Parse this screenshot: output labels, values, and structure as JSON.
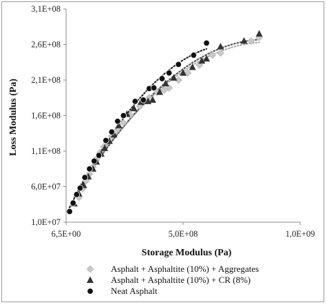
{
  "chart_data": {
    "type": "scatter",
    "xlabel": "Storage Modulus (Pa)",
    "ylabel": "Loss Modulus (Pa)",
    "xlim": [
      6.5,
      1000000000
    ],
    "ylim": [
      10000000,
      310000000
    ],
    "xticks": [
      {
        "value": 6.5,
        "label": "6,5E+00"
      },
      {
        "value": 500000000,
        "label": "5,0E+08"
      },
      {
        "value": 1000000000,
        "label": "1,0E+09"
      }
    ],
    "yticks": [
      {
        "value": 10000000,
        "label": "1,0E+07"
      },
      {
        "value": 60000000,
        "label": "6,0E+07"
      },
      {
        "value": 110000000,
        "label": "1,1E+08"
      },
      {
        "value": 160000000,
        "label": "1,6E+08"
      },
      {
        "value": 210000000,
        "label": "2,1E+08"
      },
      {
        "value": 260000000,
        "label": "2,6E+08"
      },
      {
        "value": 310000000,
        "label": "3,1E+08"
      }
    ],
    "grid": false,
    "legend_position": "bottom",
    "series": [
      {
        "name": "Asphalt + Asphaltite (10%) + Aggregates",
        "marker": "diamond",
        "color": "#c8c8c8",
        "trendline_color": "#aaaaaa",
        "points": [
          [
            55000000,
            45000000
          ],
          [
            70000000,
            57000000
          ],
          [
            85000000,
            68000000
          ],
          [
            100000000,
            78000000
          ],
          [
            115000000,
            88000000
          ],
          [
            130000000,
            99000000
          ],
          [
            145000000,
            108000000
          ],
          [
            160000000,
            116000000
          ],
          [
            175000000,
            122000000
          ],
          [
            195000000,
            131000000
          ],
          [
            210000000,
            137000000
          ],
          [
            225000000,
            143000000
          ],
          [
            245000000,
            150000000
          ],
          [
            275000000,
            161000000
          ],
          [
            315000000,
            173000000
          ],
          [
            355000000,
            185000000
          ],
          [
            390000000,
            193000000
          ],
          [
            420000000,
            196000000
          ],
          [
            440000000,
            199000000
          ],
          [
            480000000,
            210000000
          ],
          [
            520000000,
            220000000
          ],
          [
            570000000,
            231000000
          ],
          [
            625000000,
            245000000
          ],
          [
            660000000,
            248000000
          ],
          [
            790000000,
            265000000
          ],
          [
            825000000,
            270000000
          ]
        ]
      },
      {
        "name": "Asphalt + Asphaltite (10%) + CR (8%)",
        "marker": "triangle",
        "color": "#333333",
        "trendline_color": "#555555",
        "points": [
          [
            35000000,
            36000000
          ],
          [
            55000000,
            50000000
          ],
          [
            75000000,
            62000000
          ],
          [
            95000000,
            74000000
          ],
          [
            115000000,
            85000000
          ],
          [
            130000000,
            95000000
          ],
          [
            150000000,
            106000000
          ],
          [
            165000000,
            114000000
          ],
          [
            185000000,
            124000000
          ],
          [
            205000000,
            133000000
          ],
          [
            225000000,
            146000000
          ],
          [
            260000000,
            162000000
          ],
          [
            290000000,
            170000000
          ],
          [
            320000000,
            179000000
          ],
          [
            350000000,
            180000000
          ],
          [
            370000000,
            182000000
          ],
          [
            400000000,
            193000000
          ],
          [
            425000000,
            205000000
          ],
          [
            460000000,
            213000000
          ],
          [
            500000000,
            220000000
          ],
          [
            540000000,
            228000000
          ],
          [
            580000000,
            237000000
          ],
          [
            600000000,
            240000000
          ],
          [
            660000000,
            257000000
          ],
          [
            760000000,
            265000000
          ],
          [
            825000000,
            275000000
          ]
        ]
      },
      {
        "name": "Neat Asphalt",
        "marker": "circle",
        "color": "#111111",
        "trendline_color": "#222222",
        "points": [
          [
            15000000,
            25000000
          ],
          [
            30000000,
            37000000
          ],
          [
            45000000,
            49000000
          ],
          [
            60000000,
            58000000
          ],
          [
            80000000,
            73000000
          ],
          [
            100000000,
            85000000
          ],
          [
            120000000,
            96000000
          ],
          [
            140000000,
            104000000
          ],
          [
            170000000,
            125000000
          ],
          [
            195000000,
            137000000
          ],
          [
            220000000,
            152000000
          ],
          [
            245000000,
            160000000
          ],
          [
            295000000,
            180000000
          ],
          [
            330000000,
            182000000
          ],
          [
            355000000,
            198000000
          ],
          [
            375000000,
            199000000
          ],
          [
            410000000,
            212000000
          ],
          [
            440000000,
            220000000
          ],
          [
            480000000,
            232000000
          ],
          [
            545000000,
            245000000
          ],
          [
            600000000,
            262000000
          ]
        ]
      }
    ]
  }
}
